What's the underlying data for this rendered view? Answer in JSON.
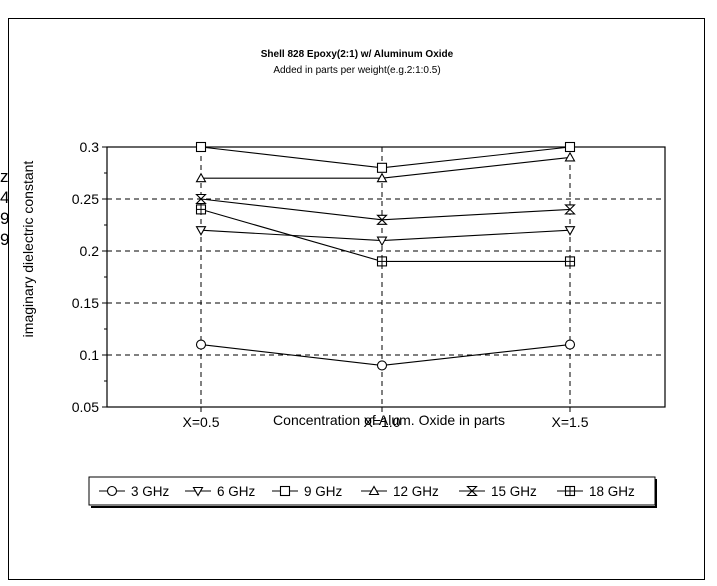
{
  "chart_data": {
    "type": "line",
    "title": "Shell 828 Epoxy(2:1) w/ Aluminum Oxide",
    "subtitle": "Added in parts per weight(e.g.2:1:0.5)",
    "xlabel": "Concentration of Alum. Oxide in parts",
    "ylabel": "imaginary dielectric constant",
    "categories": [
      "X=0.5",
      "X=1.0",
      "X=1.5"
    ],
    "ylim": [
      0.05,
      0.3
    ],
    "yticks": [
      0.05,
      0.1,
      0.15,
      0.2,
      0.25,
      0.3
    ],
    "ytick_labels": [
      "0.05",
      "0.1",
      "0.15",
      "0.2",
      "0.25",
      "0.3"
    ],
    "grid": "dashed",
    "legend_position": "bottom",
    "series": [
      {
        "name": "3 GHz",
        "marker": "circle",
        "values": [
          0.11,
          0.09,
          0.11
        ]
      },
      {
        "name": "6 GHz",
        "marker": "triangle-down",
        "values": [
          0.22,
          0.21,
          0.22
        ]
      },
      {
        "name": "9 GHz",
        "marker": "square",
        "values": [
          0.3,
          0.28,
          0.3
        ]
      },
      {
        "name": "12 GHz",
        "marker": "triangle-up",
        "values": [
          0.27,
          0.27,
          0.29
        ]
      },
      {
        "name": "15 GHz",
        "marker": "hourglass",
        "values": [
          0.25,
          0.23,
          0.24
        ]
      },
      {
        "name": "18 GHz",
        "marker": "square-cross",
        "values": [
          0.24,
          0.19,
          0.19
        ]
      }
    ]
  },
  "margin_cut_text": [
    "z",
    "4",
    "9",
    "9"
  ]
}
